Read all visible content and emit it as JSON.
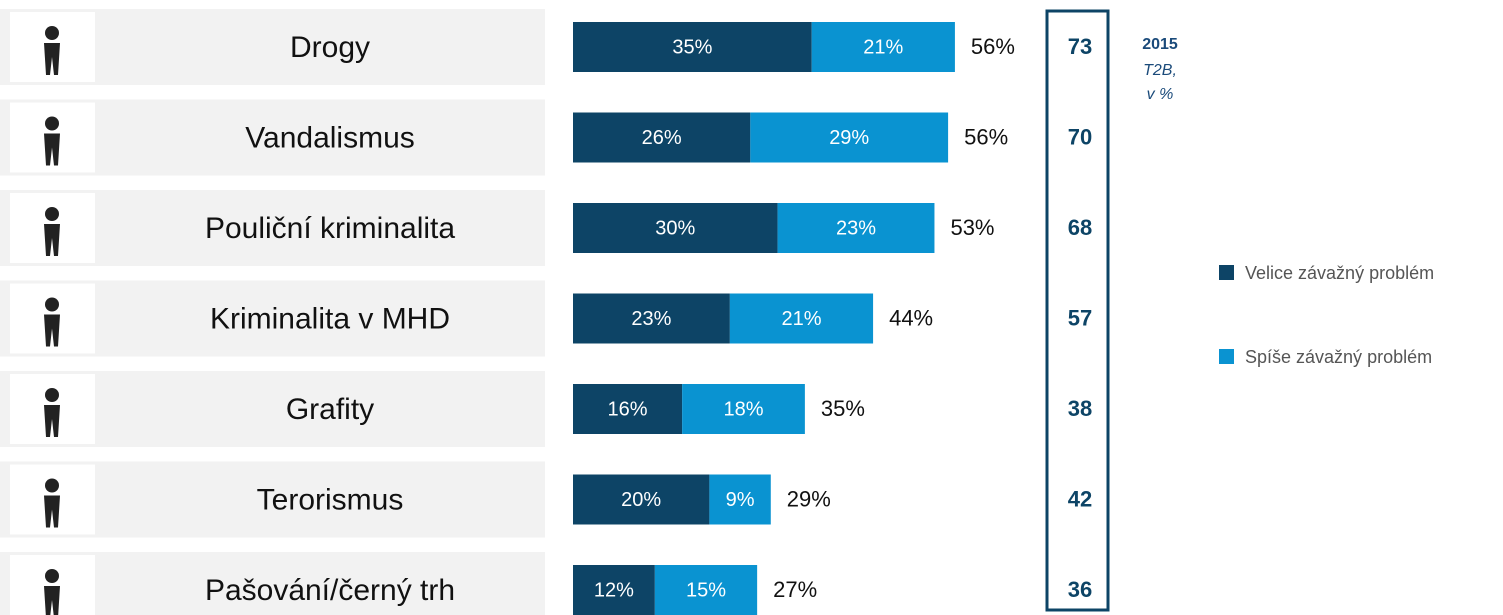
{
  "chart_data": {
    "type": "stacked_bar_horizontal",
    "categories": [
      "Drogy",
      "Vandalismus",
      "Pouliční kriminalita",
      "Kriminalita v MHD",
      "Grafity",
      "Terorismus",
      "Pašování/černý trh"
    ],
    "series": [
      {
        "name": "Velice závažný problém",
        "color": "#0d4466",
        "values": [
          35,
          26,
          30,
          23,
          16,
          20,
          12
        ],
        "value_labels": [
          "35%",
          "26%",
          "30%",
          "23%",
          "16%",
          "20%",
          "12%"
        ]
      },
      {
        "name": "Spíše závažný problém",
        "color": "#0a93d1",
        "values": [
          21,
          29,
          23,
          21,
          18,
          9,
          15
        ],
        "value_labels": [
          "21%",
          "29%",
          "23%",
          "21%",
          "18%",
          "9%",
          "15%"
        ]
      }
    ],
    "totals": {
      "values": [
        56,
        56,
        53,
        44,
        35,
        29,
        27
      ],
      "value_labels": [
        "56%",
        "56%",
        "53%",
        "44%",
        "35%",
        "29%",
        "27%"
      ]
    },
    "comparison": {
      "title": "2015",
      "subtitle": [
        "T2B,",
        "v %"
      ],
      "values": [
        73,
        70,
        68,
        57,
        38,
        42,
        36
      ]
    },
    "legend": "right"
  }
}
